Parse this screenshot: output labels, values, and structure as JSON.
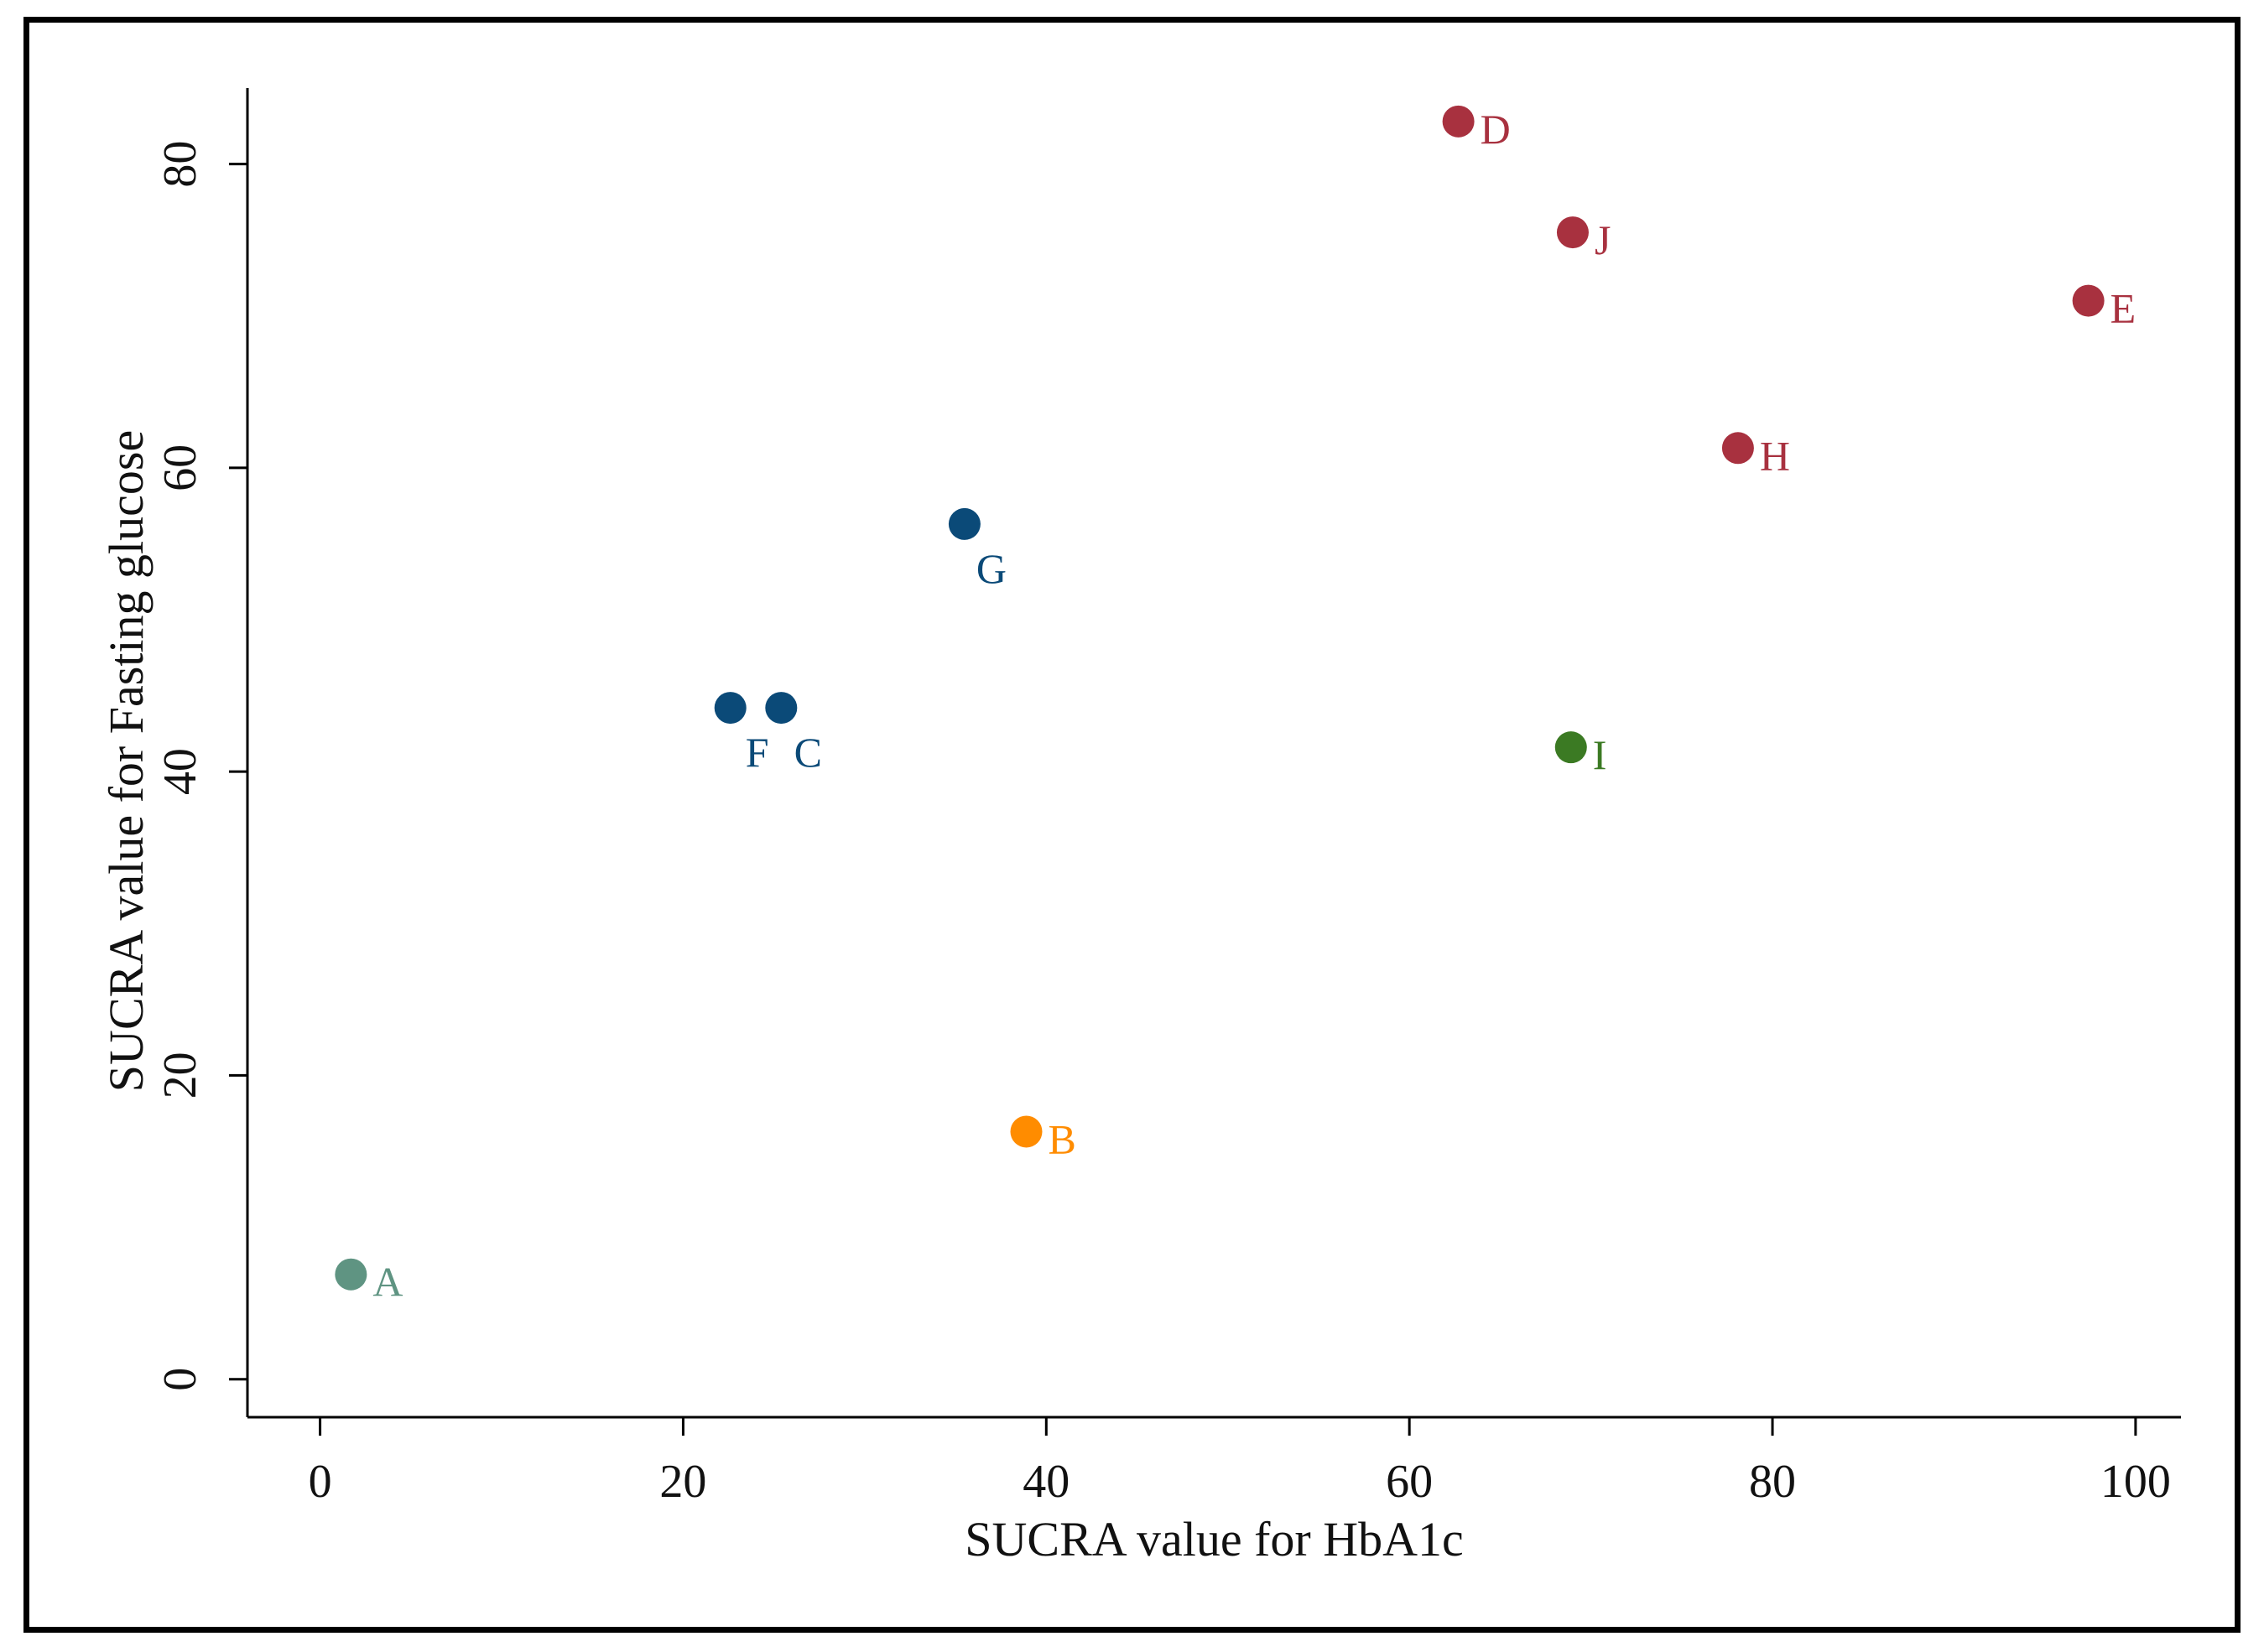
{
  "chart_data": {
    "type": "scatter",
    "title": "",
    "xlabel": "SUCRA value for HbA1c",
    "ylabel": "SUCRA value for Fasting glucose",
    "xlim": [
      -4,
      102.5
    ],
    "ylim": [
      -2.5,
      85
    ],
    "xticks": [
      0,
      20,
      40,
      60,
      80,
      100
    ],
    "yticks": [
      0,
      20,
      40,
      60,
      80
    ],
    "grid": false,
    "legend": "none",
    "points": [
      {
        "label": "A",
        "x": 1.7,
        "y": 6.9,
        "color": "#5f9482",
        "label_pos": "right"
      },
      {
        "label": "B",
        "x": 38.9,
        "y": 16.3,
        "color": "#ff8c00",
        "label_pos": "right"
      },
      {
        "label": "C",
        "x": 25.4,
        "y": 44.2,
        "color": "#0b4a78",
        "label_pos": "below"
      },
      {
        "label": "D",
        "x": 62.7,
        "y": 82.8,
        "color": "#a8313f",
        "label_pos": "right"
      },
      {
        "label": "E",
        "x": 97.4,
        "y": 71.0,
        "color": "#a8313f",
        "label_pos": "right"
      },
      {
        "label": "F",
        "x": 22.6,
        "y": 44.2,
        "color": "#0b4a78",
        "label_pos": "below"
      },
      {
        "label": "G",
        "x": 35.5,
        "y": 56.3,
        "color": "#0b4a78",
        "label_pos": "below"
      },
      {
        "label": "H",
        "x": 78.1,
        "y": 61.3,
        "color": "#a8313f",
        "label_pos": "right"
      },
      {
        "label": "I",
        "x": 68.9,
        "y": 41.6,
        "color": "#3b7a23",
        "label_pos": "right"
      },
      {
        "label": "J",
        "x": 69.0,
        "y": 75.5,
        "color": "#a8313f",
        "label_pos": "right"
      }
    ]
  }
}
